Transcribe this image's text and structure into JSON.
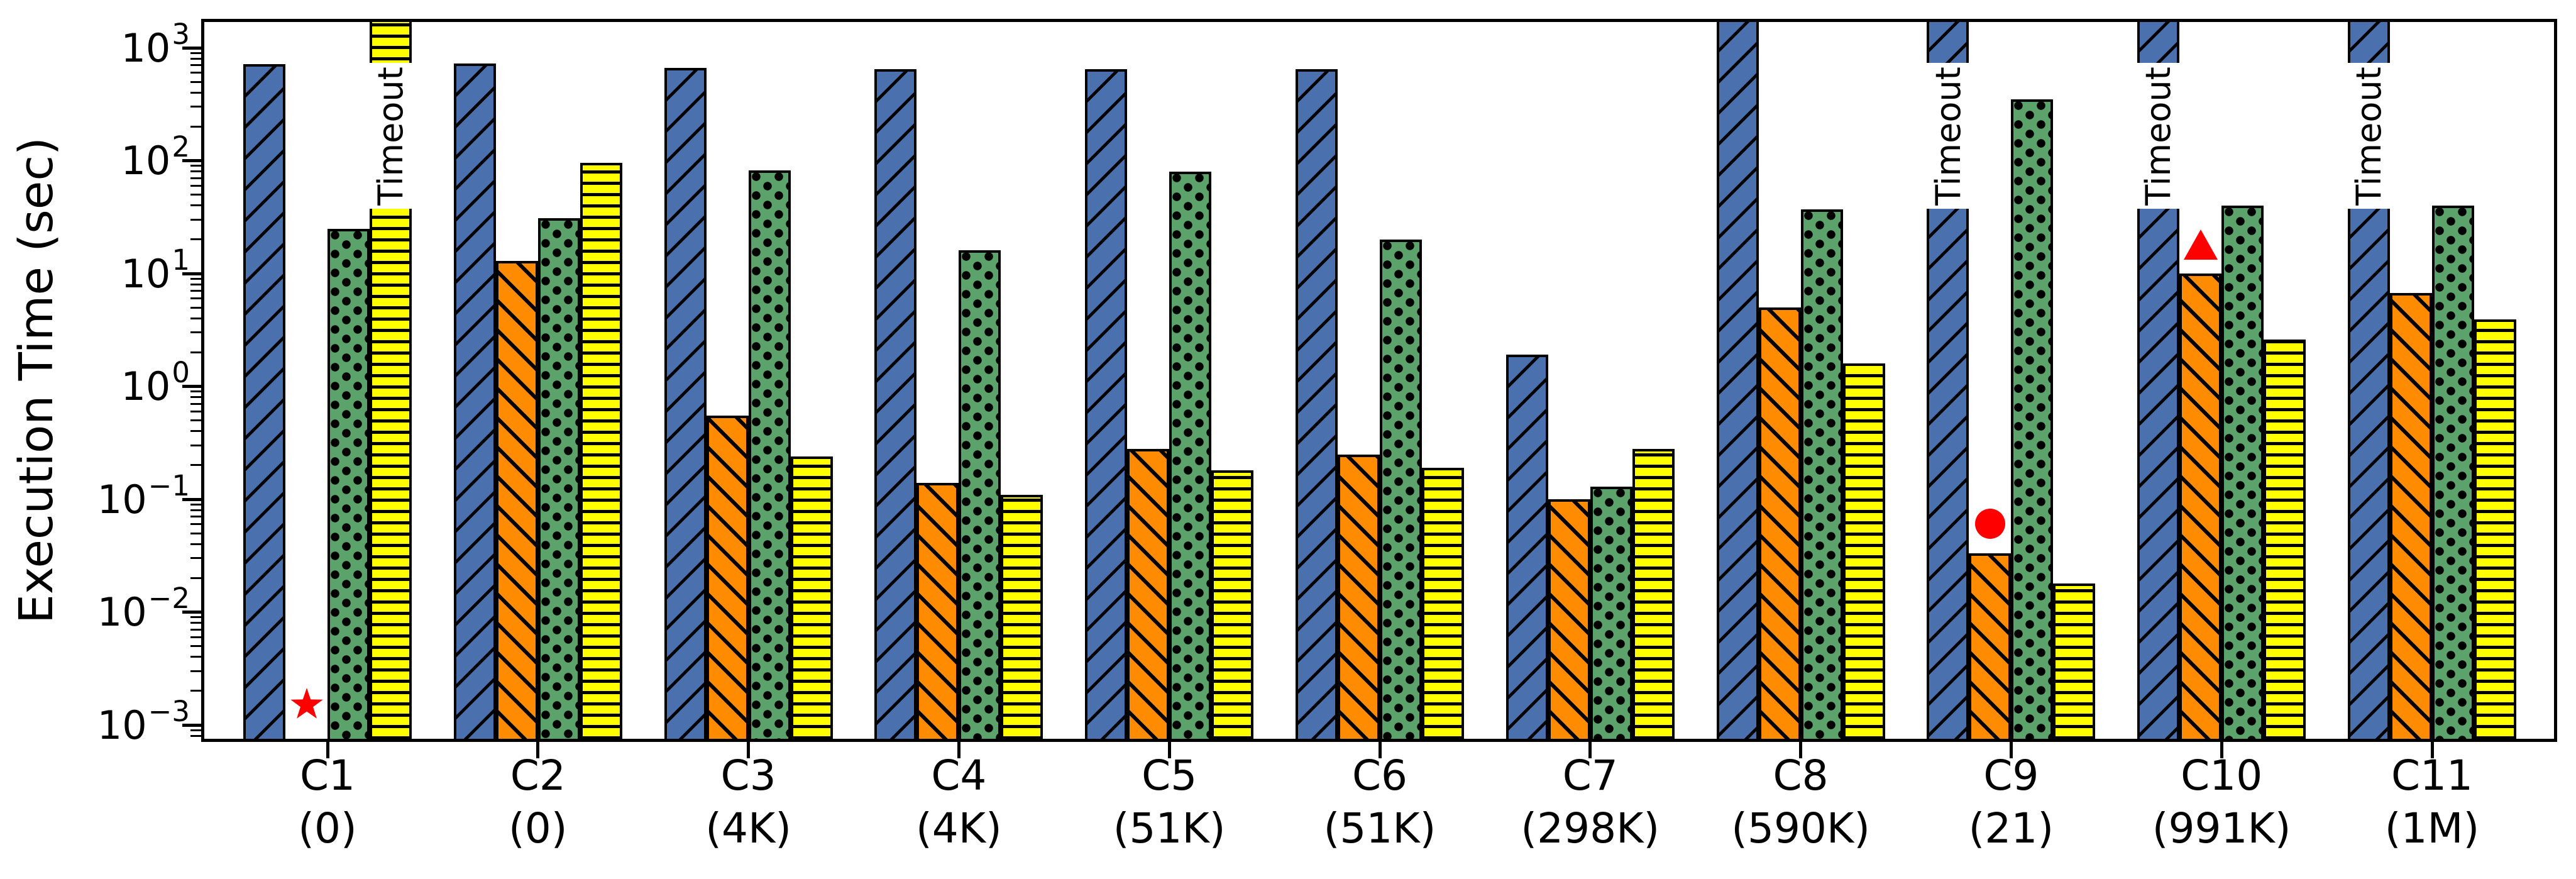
{
  "figure": {
    "ylabel": "Execution Time (sec)",
    "timeout_label": "Timeout"
  },
  "chart_data": {
    "type": "bar",
    "yscale": "log",
    "grid": false,
    "legend": "none",
    "title": "",
    "xlabel": "",
    "ylabel": "Execution Time (sec)",
    "ylim": [
      0.0007,
      1800
    ],
    "ytick_exponents": [
      3,
      2,
      1,
      0,
      -1,
      -2,
      -3
    ],
    "timeout_value": 1800,
    "timeout_label": "Timeout",
    "categories": [
      "C1",
      "C2",
      "C3",
      "C4",
      "C5",
      "C6",
      "C7",
      "C8",
      "C9",
      "C10",
      "C11"
    ],
    "category_sublabels": [
      "(0)",
      "(0)",
      "(4K)",
      "(4K)",
      "(51K)",
      "(51K)",
      "(298K)",
      "(590K)",
      "(21)",
      "(991K)",
      "(1M)"
    ],
    "series": [
      {
        "name": "series-blue-diagonal",
        "color": "#4a70ad",
        "hatch": "/",
        "values": [
          720,
          730,
          660,
          650,
          650,
          650,
          1.9,
          1800,
          1800,
          1800,
          1800
        ],
        "timeout_label_on": [
          8,
          9,
          10
        ]
      },
      {
        "name": "series-orange-diagonal",
        "color": "#ff8c00",
        "hatch": "\\",
        "values": [
          null,
          13,
          0.55,
          0.14,
          0.28,
          0.25,
          0.1,
          5,
          0.033,
          10,
          6.7
        ],
        "timeout_label_on": []
      },
      {
        "name": "series-green-dots",
        "color": "#5ba36a",
        "hatch": "o",
        "values": [
          25,
          31,
          82,
          16,
          80,
          20,
          0.13,
          37,
          350,
          40,
          40
        ],
        "timeout_label_on": []
      },
      {
        "name": "series-yellow-horizontal",
        "color": "#ffff00",
        "hatch": "-",
        "values": [
          1800,
          95,
          0.24,
          0.11,
          0.18,
          0.19,
          0.28,
          1.6,
          0.018,
          2.6,
          3.9
        ],
        "timeout_label_on": [
          0
        ]
      }
    ],
    "markers": [
      {
        "shape": "star",
        "color": "#ff0000",
        "category_index": 0,
        "value": 0.0015
      },
      {
        "shape": "circle",
        "color": "#ff0000",
        "category_index": 8,
        "value": 0.061
      },
      {
        "shape": "triangle",
        "color": "#ff0000",
        "category_index": 9,
        "value": 18
      }
    ]
  }
}
